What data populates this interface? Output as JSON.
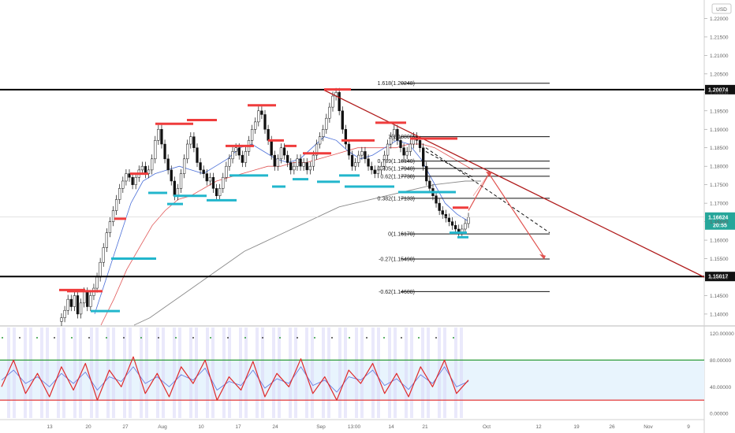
{
  "currency": "USD",
  "chart_data": {
    "type": "candlestick",
    "price_axis": {
      "ticks": [
        "1.22000",
        "1.21500",
        "1.21000",
        "1.20500",
        "1.20000",
        "1.19500",
        "1.19000",
        "1.18500",
        "1.18000",
        "1.17500",
        "1.17000",
        "1.16500",
        "1.16000",
        "1.15500",
        "1.15000",
        "1.14500",
        "1.14000"
      ],
      "ylim": [
        1.137,
        1.225
      ]
    },
    "osc_axis": {
      "ticks": [
        "120.00000",
        "80.00000",
        "40.00000",
        "0.00000"
      ],
      "ylim": [
        -8,
        130
      ]
    },
    "time_axis": [
      "13",
      "20",
      "27",
      "Aug",
      "10",
      "17",
      "24",
      "Sep",
      "13:00",
      "14",
      "21",
      "Oct",
      "12",
      "19",
      "26",
      "Nov",
      "9"
    ],
    "levels": [
      {
        "label": "1.20074",
        "value": 1.20074
      },
      {
        "label": "1.15017",
        "value": 1.15017
      }
    ],
    "current_price": {
      "label": "1.16624",
      "value": 1.16624,
      "timer": "20:55"
    },
    "fibonacci": [
      {
        "label": "1.618(1.20248)",
        "value": 1.20248
      },
      {
        "label": "1(1.18800)",
        "value": 1.188
      },
      {
        "label": "0.789(1.18140)",
        "value": 1.1814
      },
      {
        "label": "0.705(1.17940)",
        "value": 1.1794
      },
      {
        "label": "0.62(1.17730)",
        "value": 1.1773
      },
      {
        "label": "0.382(1.17133)",
        "value": 1.17133
      },
      {
        "label": "0(1.16170)",
        "value": 1.1617
      },
      {
        "label": "-0.27(1.15490)",
        "value": 1.1549
      },
      {
        "label": "-0.62(1.14608)",
        "value": 1.14608
      }
    ],
    "candles": [
      1.139,
      1.141,
      1.144,
      1.142,
      1.145,
      1.14,
      1.143,
      1.146,
      1.142,
      1.145,
      1.147,
      1.15,
      1.154,
      1.158,
      1.162,
      1.165,
      1.168,
      1.171,
      1.174,
      1.176,
      1.178,
      1.177,
      1.175,
      1.177,
      1.179,
      1.18,
      1.178,
      1.179,
      1.182,
      1.187,
      1.19,
      1.186,
      1.182,
      1.179,
      1.176,
      1.172,
      1.174,
      1.178,
      1.182,
      1.186,
      1.188,
      1.185,
      1.181,
      1.179,
      1.178,
      1.176,
      1.177,
      1.174,
      1.172,
      1.174,
      1.177,
      1.18,
      1.182,
      1.184,
      1.185,
      1.183,
      1.181,
      1.184,
      1.187,
      1.19,
      1.192,
      1.195,
      1.194,
      1.19,
      1.187,
      1.183,
      1.18,
      1.182,
      1.185,
      1.183,
      1.181,
      1.179,
      1.18,
      1.182,
      1.18,
      1.181,
      1.179,
      1.18,
      1.183,
      1.186,
      1.188,
      1.19,
      1.193,
      1.196,
      1.199,
      1.2,
      1.195,
      1.19,
      1.186,
      1.183,
      1.18,
      1.181,
      1.183,
      1.184,
      1.182,
      1.18,
      1.179,
      1.178,
      1.179,
      1.18,
      1.183,
      1.186,
      1.188,
      1.19,
      1.187,
      1.185,
      1.183,
      1.184,
      1.186,
      1.188,
      1.187,
      1.185,
      1.18,
      1.176,
      1.174,
      1.172,
      1.17,
      1.168,
      1.167,
      1.166,
      1.165,
      1.164,
      1.163,
      1.162,
      1.163,
      1.1645,
      1.1662
    ],
    "ema_fast": [
      1.14,
      1.15,
      1.16,
      1.17,
      1.176,
      1.178,
      1.179,
      1.18,
      1.179,
      1.178,
      1.18,
      1.182,
      1.185,
      1.186,
      1.184,
      1.182,
      1.181,
      1.182,
      1.185,
      1.188,
      1.187,
      1.184,
      1.182,
      1.183,
      1.185,
      1.187,
      1.186,
      1.182,
      1.176,
      1.17,
      1.167,
      1.165
    ],
    "ema_slow": [
      1.137,
      1.144,
      1.152,
      1.158,
      1.164,
      1.168,
      1.171,
      1.172,
      1.174,
      1.176,
      1.177,
      1.178,
      1.179,
      1.18,
      1.18,
      1.181,
      1.181,
      1.182,
      1.183,
      1.184,
      1.185,
      1.185,
      1.185,
      1.185,
      1.186,
      1.186,
      1.185,
      1.183,
      1.181,
      1.179
    ],
    "ma_long": [
      1.137,
      1.139,
      1.142,
      1.145,
      1.148,
      1.151,
      1.154,
      1.157,
      1.159,
      1.161,
      1.163,
      1.165,
      1.167,
      1.169,
      1.17,
      1.171,
      1.172,
      1.173,
      1.174,
      1.175,
      1.1755,
      1.176,
      1.176
    ],
    "stoch_k": [
      40,
      80,
      30,
      60,
      25,
      70,
      35,
      75,
      20,
      65,
      40,
      85,
      30,
      60,
      25,
      70,
      45,
      80,
      20,
      55,
      35,
      78,
      25,
      60,
      40,
      82,
      30,
      55,
      20,
      65,
      45,
      75,
      30,
      60,
      25,
      70,
      40,
      80,
      30,
      50
    ],
    "stoch_d": [
      50,
      65,
      45,
      55,
      40,
      60,
      45,
      62,
      35,
      55,
      48,
      70,
      45,
      55,
      40,
      58,
      50,
      68,
      35,
      48,
      42,
      65,
      38,
      52,
      45,
      70,
      42,
      50,
      32,
      55,
      50,
      65,
      42,
      52,
      36,
      58,
      45,
      70,
      40,
      48
    ],
    "osc_bands": {
      "upper": 80,
      "lower": 20
    }
  }
}
